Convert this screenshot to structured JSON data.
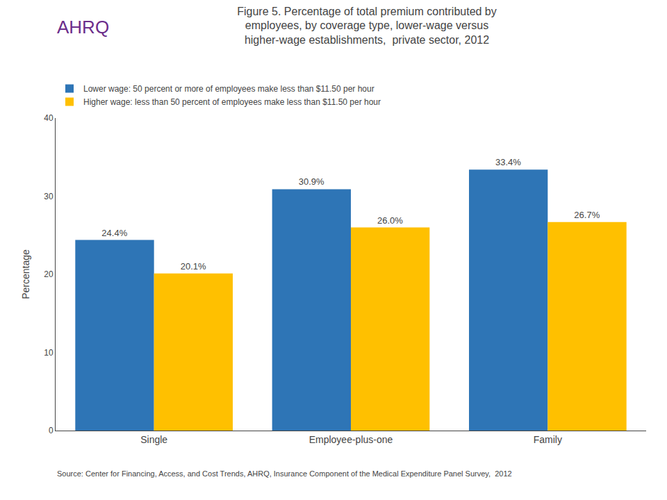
{
  "chart_data": {
    "type": "bar",
    "title": "Figure 5. Percentage of total premium contributed by\nemployees, by coverage type, lower-wage versus\nhigher-wage establishments,  private sector, 2012",
    "categories": [
      "Single",
      "Employee-plus-one",
      "Family"
    ],
    "series": [
      {
        "name": "Lower wage: 50 percent or more of employees make less than $11.50 per hour",
        "color": "#2E75B6",
        "values": [
          24.4,
          30.9,
          33.4
        ],
        "value_labels": [
          "24.4%",
          "30.9%",
          "33.4%"
        ]
      },
      {
        "name": "Higher wage: less than 50 percent of employees make less than $11.50 per hour",
        "color": "#FFC000",
        "values": [
          20.1,
          26.0,
          26.7
        ],
        "value_labels": [
          "20.1%",
          "26.0%",
          "26.7%"
        ]
      }
    ],
    "y_label": "Percentage",
    "ylim": [
      0,
      40
    ],
    "yticks": [
      0,
      10,
      20,
      30,
      40
    ],
    "grid": false,
    "legend": "top left",
    "data_labels": true,
    "annotations": [
      "AHRQ",
      "Source: Center for Financing, Access, and Cost Trends, AHRQ, Insurance Component of the Medical Expenditure Panel Survey,  2012"
    ]
  }
}
